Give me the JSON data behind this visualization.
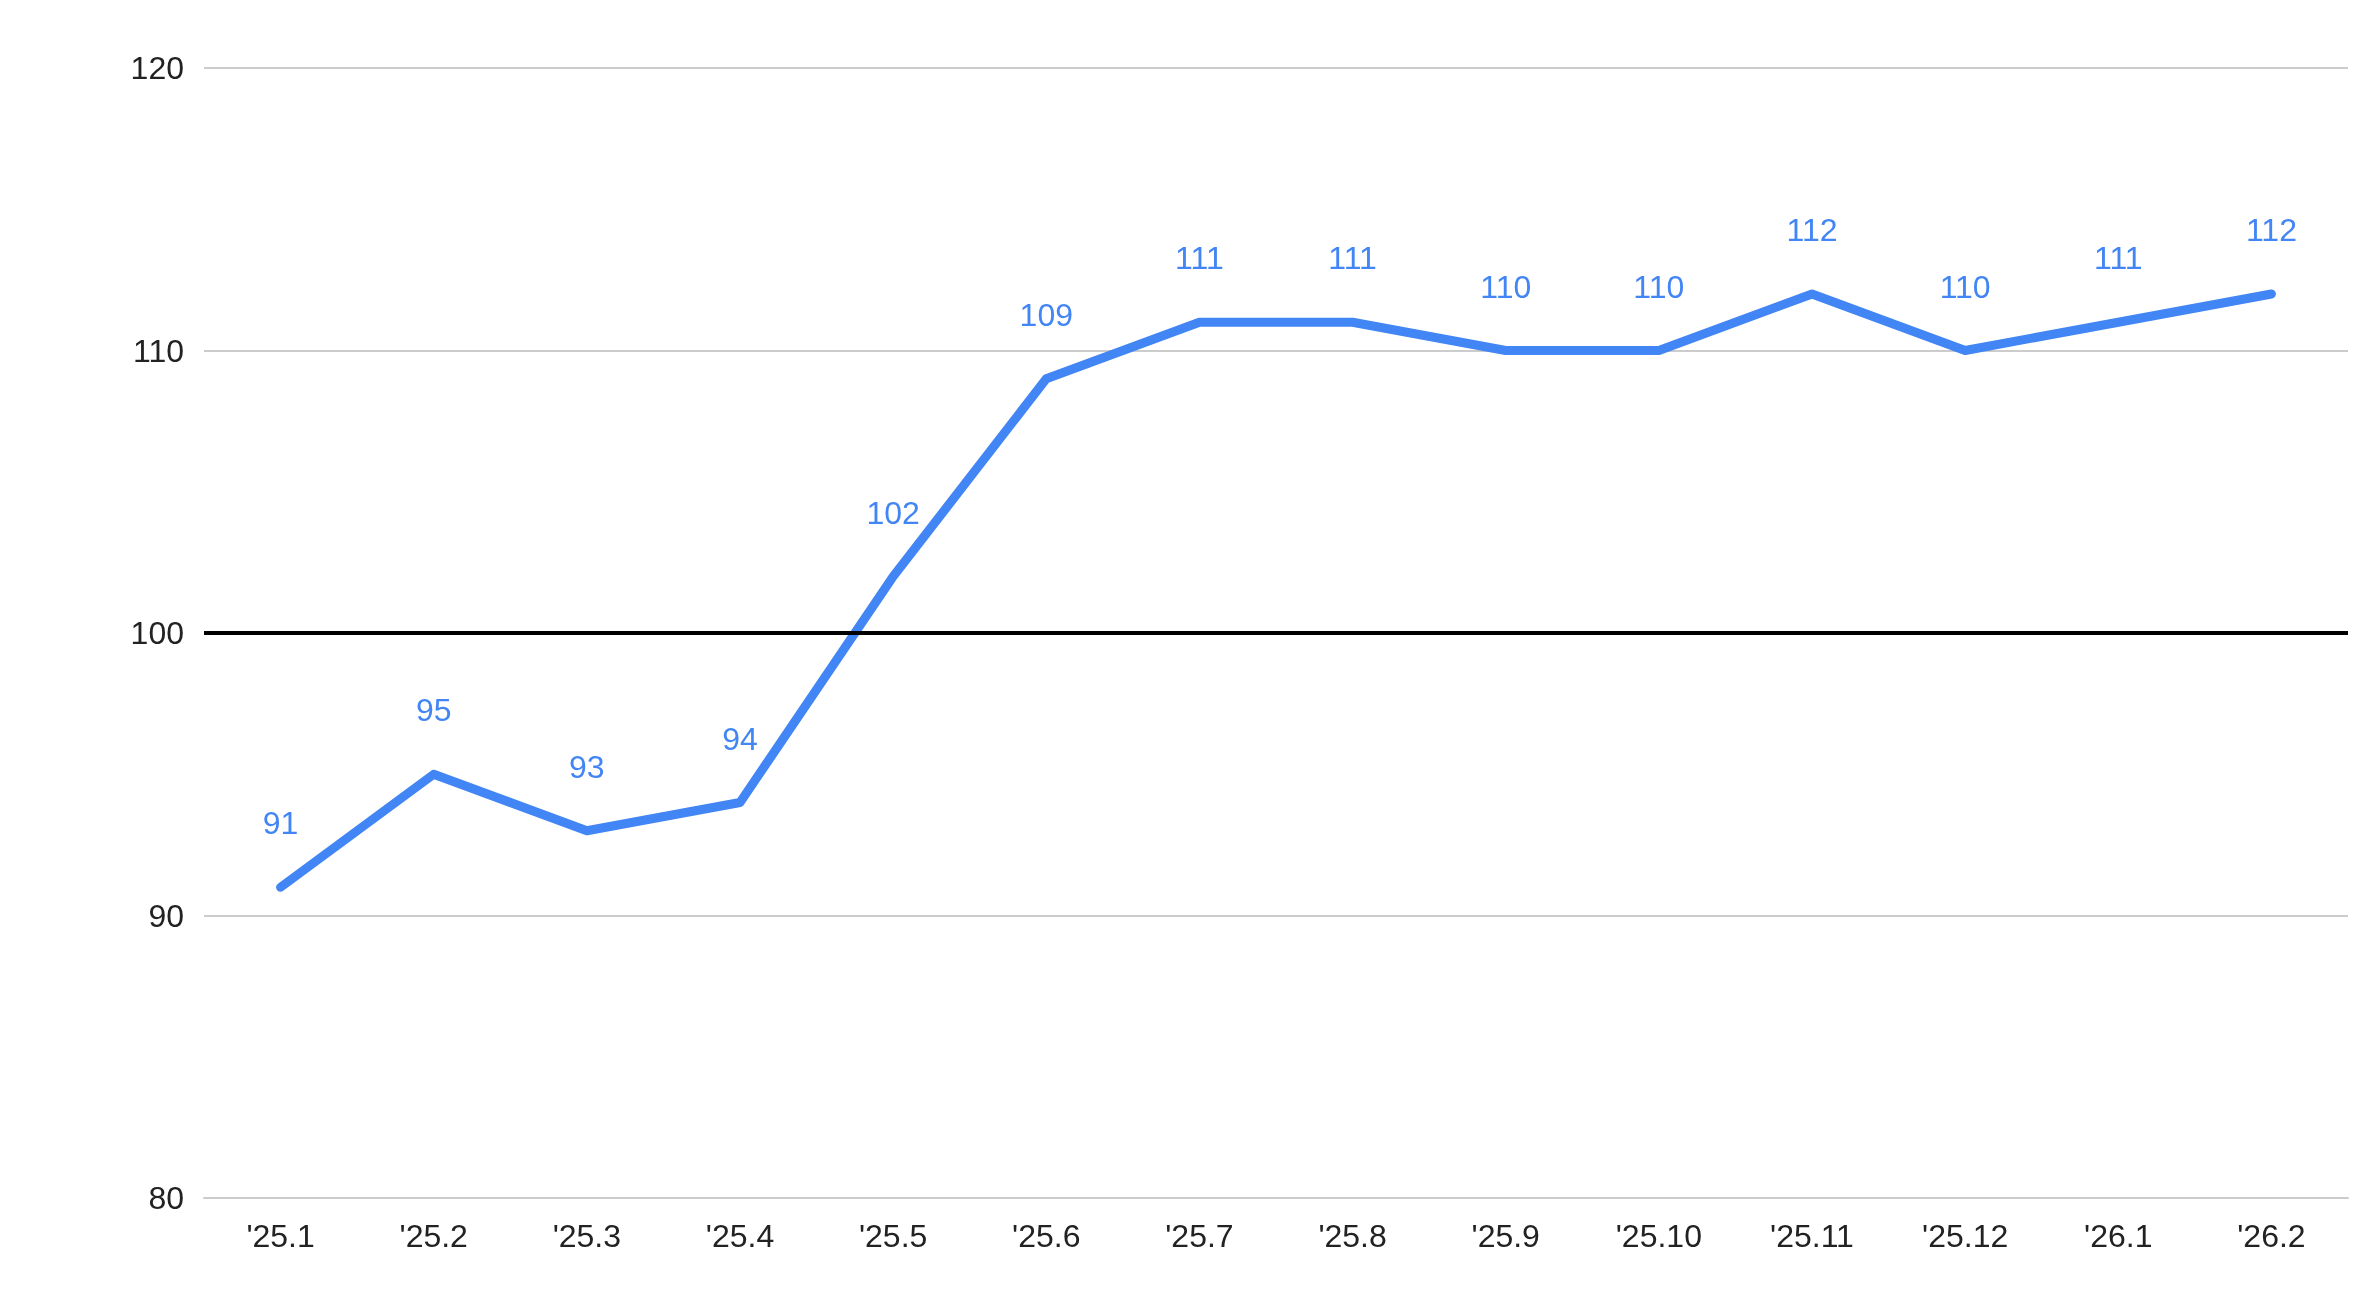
{
  "chart_data": {
    "type": "line",
    "categories": [
      "'25.1",
      "'25.2",
      "'25.3",
      "'25.4",
      "'25.5",
      "'25.6",
      "'25.7",
      "'25.8",
      "'25.9",
      "'25.10",
      "'25.11",
      "'25.12",
      "'26.1",
      "'26.2"
    ],
    "series": [
      {
        "color": "#4285f4",
        "values": [
          91,
          95,
          93,
          94,
          102,
          109,
          111,
          111,
          110,
          110,
          112,
          110,
          111,
          112
        ]
      }
    ],
    "ylim": [
      80,
      120
    ],
    "yticks": [
      80,
      90,
      100,
      110,
      120
    ],
    "grid": "y",
    "marker": "none",
    "data_labels": true,
    "ref_lines": [
      {
        "axis": "y",
        "value": 100,
        "label": null,
        "color": "#000000",
        "line_style": "solid"
      }
    ]
  }
}
